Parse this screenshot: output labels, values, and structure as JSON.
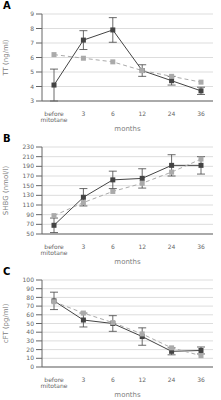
{
  "chart_data": [
    {
      "type": "line",
      "title": "A",
      "xlabel": "months",
      "ylabel": "TT (ng/ml)",
      "categories": [
        "before\nmitotane",
        "3",
        "6",
        "12",
        "24",
        "36"
      ],
      "ylim": [
        3,
        9
      ],
      "yticks": [
        3,
        4,
        5,
        6,
        7,
        8,
        9
      ],
      "grid": true,
      "series": [
        {
          "color": "#444444",
          "marker": "square",
          "line_style": "solid",
          "values": [
            4.1,
            7.2,
            7.9,
            5.1,
            4.4,
            3.7
          ],
          "yerr": [
            1.1,
            0.65,
            0.85,
            0.4,
            0.3,
            0.25
          ]
        },
        {
          "color": "#aaaaaa",
          "marker": "square",
          "line_style": "dashed",
          "values": [
            6.2,
            5.95,
            5.7,
            5.1,
            4.7,
            4.3
          ]
        }
      ]
    },
    {
      "type": "line",
      "title": "B",
      "xlabel": "months",
      "ylabel": "SHBG (nmol/l)",
      "categories": [
        "before\nmitotane",
        "3",
        "6",
        "12",
        "24",
        "36"
      ],
      "ylim": [
        50,
        230
      ],
      "yticks": [
        50,
        70,
        90,
        110,
        130,
        150,
        170,
        190,
        210,
        230
      ],
      "grid": true,
      "series": [
        {
          "color": "#444444",
          "marker": "square",
          "line_style": "solid",
          "values": [
            68,
            126,
            162,
            165,
            192,
            192
          ],
          "yerr": [
            15,
            18,
            18,
            20,
            22,
            18
          ]
        },
        {
          "color": "#aaaaaa",
          "marker": "square",
          "line_style": "dashed",
          "values": [
            88,
            115,
            138,
            155,
            178,
            205
          ]
        }
      ]
    },
    {
      "type": "line",
      "title": "C",
      "xlabel": "months",
      "ylabel": "cFT (pg/ml)",
      "categories": [
        "before\nmitotane",
        "3",
        "6",
        "12",
        "24",
        "36"
      ],
      "ylim": [
        0,
        100
      ],
      "yticks": [
        0,
        10,
        20,
        30,
        40,
        50,
        60,
        70,
        80,
        90,
        100
      ],
      "grid": true,
      "series": [
        {
          "color": "#444444",
          "marker": "square",
          "line_style": "solid",
          "values": [
            76,
            54,
            50,
            35,
            18,
            19
          ],
          "yerr": [
            10,
            8,
            9,
            10,
            4,
            4
          ]
        },
        {
          "color": "#aaaaaa",
          "marker": "square",
          "line_style": "dashed",
          "values": [
            75,
            62,
            51,
            38,
            22,
            13
          ]
        }
      ]
    }
  ]
}
